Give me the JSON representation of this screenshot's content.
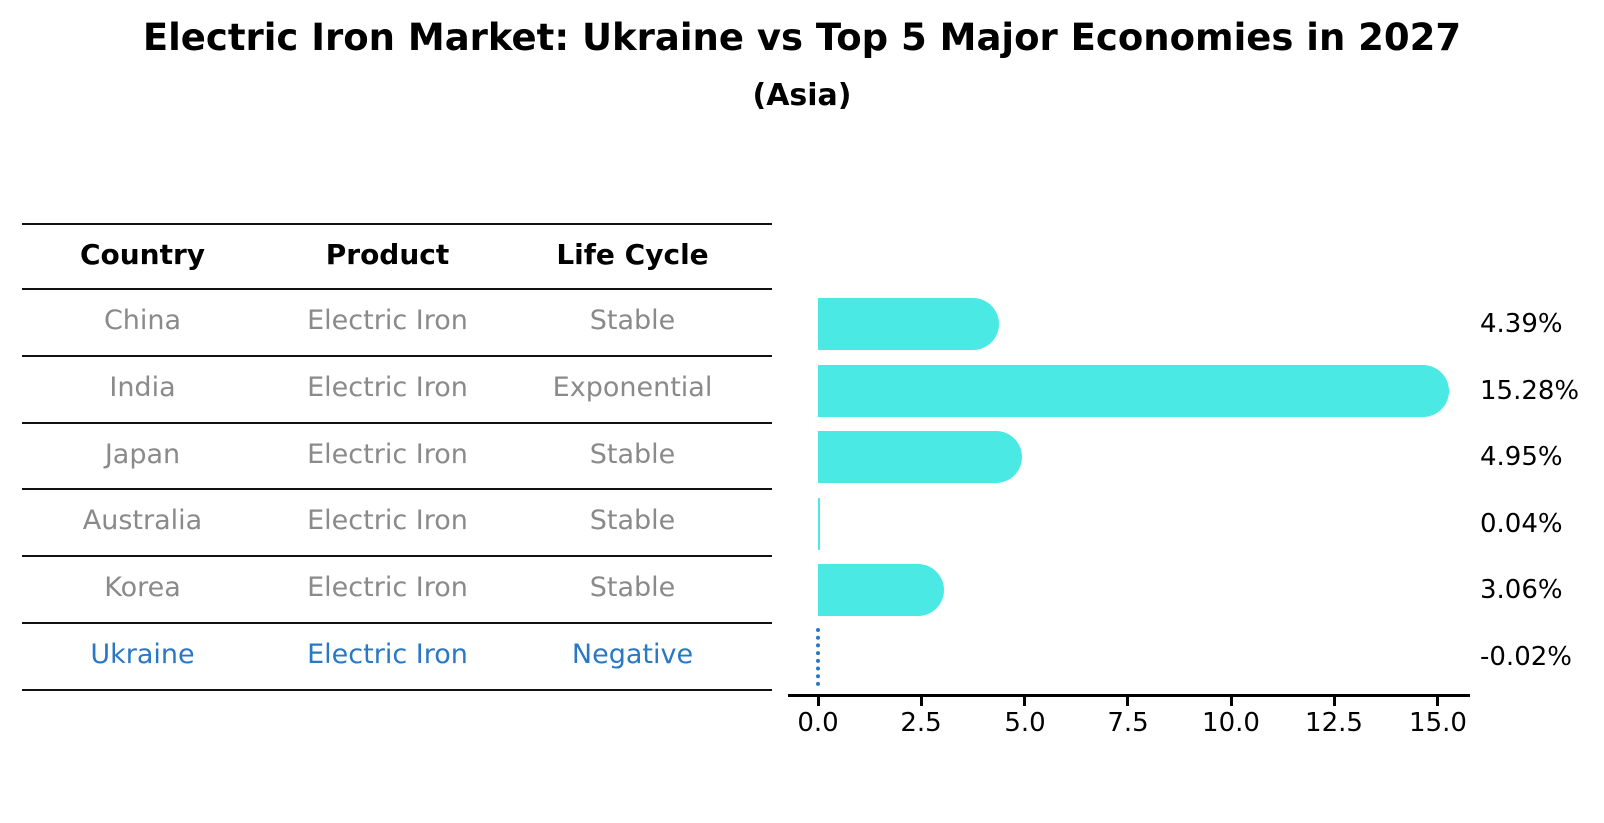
{
  "title": "Electric Iron Market: Ukraine vs Top 5 Major Economies in 2027",
  "subtitle": "(Asia)",
  "table": {
    "headers": [
      "Country",
      "Product",
      "Life Cycle"
    ],
    "rows": [
      {
        "country": "China",
        "product": "Electric Iron",
        "life_cycle": "Stable",
        "highlight": false
      },
      {
        "country": "India",
        "product": "Electric Iron",
        "life_cycle": "Exponential",
        "highlight": false
      },
      {
        "country": "Japan",
        "product": "Electric Iron",
        "life_cycle": "Stable",
        "highlight": false
      },
      {
        "country": "Australia",
        "product": "Electric Iron",
        "life_cycle": "Stable",
        "highlight": false
      },
      {
        "country": "Korea",
        "product": "Electric Iron",
        "life_cycle": "Stable",
        "highlight": false
      },
      {
        "country": "Ukraine",
        "product": "Electric Iron",
        "life_cycle": "Negative",
        "highlight": true
      }
    ]
  },
  "chart_data": {
    "type": "bar",
    "orientation": "horizontal",
    "categories": [
      "China",
      "India",
      "Japan",
      "Australia",
      "Korea",
      "Ukraine"
    ],
    "values": [
      4.39,
      15.28,
      4.95,
      0.04,
      3.06,
      -0.02
    ],
    "value_labels": [
      "4.39%",
      "15.28%",
      "4.95%",
      "0.04%",
      "3.06%",
      "-0.02%"
    ],
    "x_ticks": [
      0.0,
      2.5,
      5.0,
      7.5,
      10.0,
      12.5,
      15.0
    ],
    "x_tick_labels": [
      "0.0",
      "2.5",
      "5.0",
      "7.5",
      "10.0",
      "12.5",
      "15.0"
    ],
    "xlim": [
      -0.85,
      16.1
    ],
    "unit": "%",
    "grid": false,
    "legend": "none",
    "bar_color": "#4AE9E4",
    "highlight_color": "#2878C6",
    "negative_marker": "dotted-line-at-zero"
  },
  "colors": {
    "background": "#FFFFFF",
    "bar": "#4AE9E4",
    "highlight_blue": "#2878C6",
    "table_text_gray": "#8A8A8A",
    "text_black": "#000000"
  }
}
